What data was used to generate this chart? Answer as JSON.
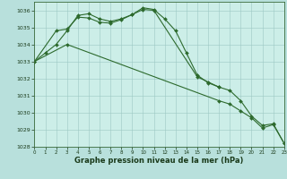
{
  "line1_x": [
    0,
    1,
    2,
    3,
    4,
    5,
    6,
    7,
    8,
    9,
    10,
    11,
    12,
    13,
    14,
    15,
    16,
    17
  ],
  "line1_y": [
    1033.0,
    1033.5,
    1034.0,
    1034.8,
    1035.7,
    1035.8,
    1035.5,
    1035.35,
    1035.5,
    1035.75,
    1036.15,
    1036.05,
    1035.5,
    1034.8,
    1033.5,
    1032.2,
    1031.75,
    1031.5
  ],
  "line2_x": [
    0,
    2,
    3,
    4,
    5,
    6,
    7,
    8,
    9,
    10,
    11,
    15,
    16,
    17,
    18,
    19,
    20,
    21,
    22,
    23
  ],
  "line2_y": [
    1033.0,
    1034.8,
    1034.9,
    1035.6,
    1035.55,
    1035.3,
    1035.25,
    1035.45,
    1035.75,
    1036.05,
    1036.0,
    1032.1,
    1031.8,
    1031.5,
    1031.3,
    1030.7,
    1029.8,
    1029.25,
    1029.35,
    1028.2
  ],
  "line3_x": [
    0,
    3,
    17,
    18,
    19,
    20,
    21,
    22,
    23
  ],
  "line3_y": [
    1033.0,
    1034.0,
    1030.7,
    1030.5,
    1030.1,
    1029.7,
    1029.1,
    1029.3,
    1028.2
  ],
  "colors": {
    "line": "#2d6a2d",
    "background_plot": "#cceee8",
    "background_fig": "#b8e0dc",
    "grid_major": "#9dc8c4",
    "grid_minor": "#b8ddd8"
  },
  "xlim": [
    0,
    23
  ],
  "ylim": [
    1028,
    1036.5
  ],
  "yticks": [
    1028,
    1029,
    1030,
    1031,
    1032,
    1033,
    1034,
    1035,
    1036
  ],
  "xticks": [
    0,
    1,
    2,
    3,
    4,
    5,
    6,
    7,
    8,
    9,
    10,
    11,
    12,
    13,
    14,
    15,
    16,
    17,
    18,
    19,
    20,
    21,
    22,
    23
  ],
  "xlabel": "Graphe pression niveau de la mer (hPa)"
}
